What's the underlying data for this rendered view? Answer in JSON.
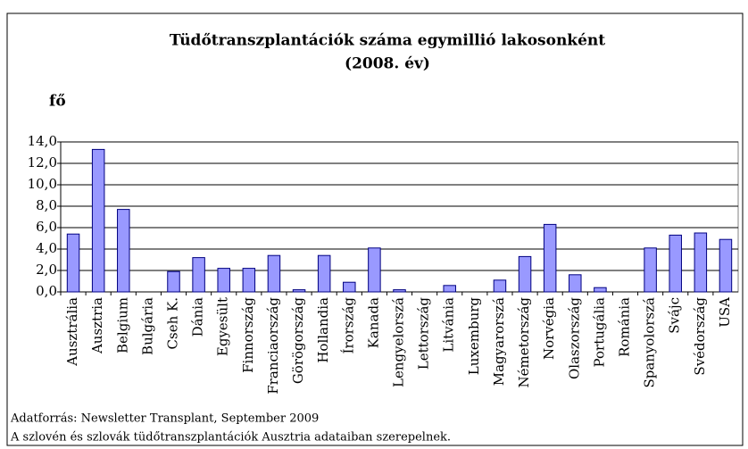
{
  "chart_data": {
    "type": "bar",
    "title": "Tüdőtranszplantációk száma egymillió lakosonként",
    "subtitle": "(2008. év)",
    "y_label": "fő",
    "categories": [
      "Ausztrália",
      "Ausztria",
      "Belgium",
      "Bulgária",
      "Cseh K.",
      "Dánia",
      "Egyesült",
      "Finnország",
      "Franciaország",
      "Görögország",
      "Hollandia",
      "Írország",
      "Kanada",
      "Lengyelorszá",
      "Lettország",
      "Litvánia",
      "Luxemburg",
      "Magyarorszá",
      "Németország",
      "Norvégia",
      "Olaszország",
      "Portugália",
      "Románia",
      "Spanyolorszá",
      "Svájc",
      "Svédország",
      "USA"
    ],
    "values": [
      5.4,
      13.3,
      7.7,
      0,
      1.9,
      3.2,
      2.2,
      2.2,
      3.4,
      0.2,
      3.4,
      0.9,
      4.1,
      0.2,
      0,
      0.6,
      0,
      1.1,
      3.3,
      6.3,
      1.6,
      0.4,
      0,
      4.1,
      5.3,
      5.5,
      4.9
    ],
    "color": "#9999ff",
    "ylim": [
      0,
      14
    ],
    "yticks": [
      {
        "value": 0,
        "label": "0,0"
      },
      {
        "value": 2,
        "label": "2,0"
      },
      {
        "value": 4,
        "label": "4,0"
      },
      {
        "value": 6,
        "label": "6,0"
      },
      {
        "value": 8,
        "label": "8,0"
      },
      {
        "value": 10,
        "label": "10,0"
      },
      {
        "value": 12,
        "label": "12,0"
      },
      {
        "value": 14,
        "label": "14,0"
      }
    ],
    "grid": true,
    "notes": [
      "Adatforrás: Newsletter Transplant, September 2009",
      "A szlovén és szlovák tüdőtranszplantációk Ausztria adataiban szerepelnek."
    ]
  }
}
